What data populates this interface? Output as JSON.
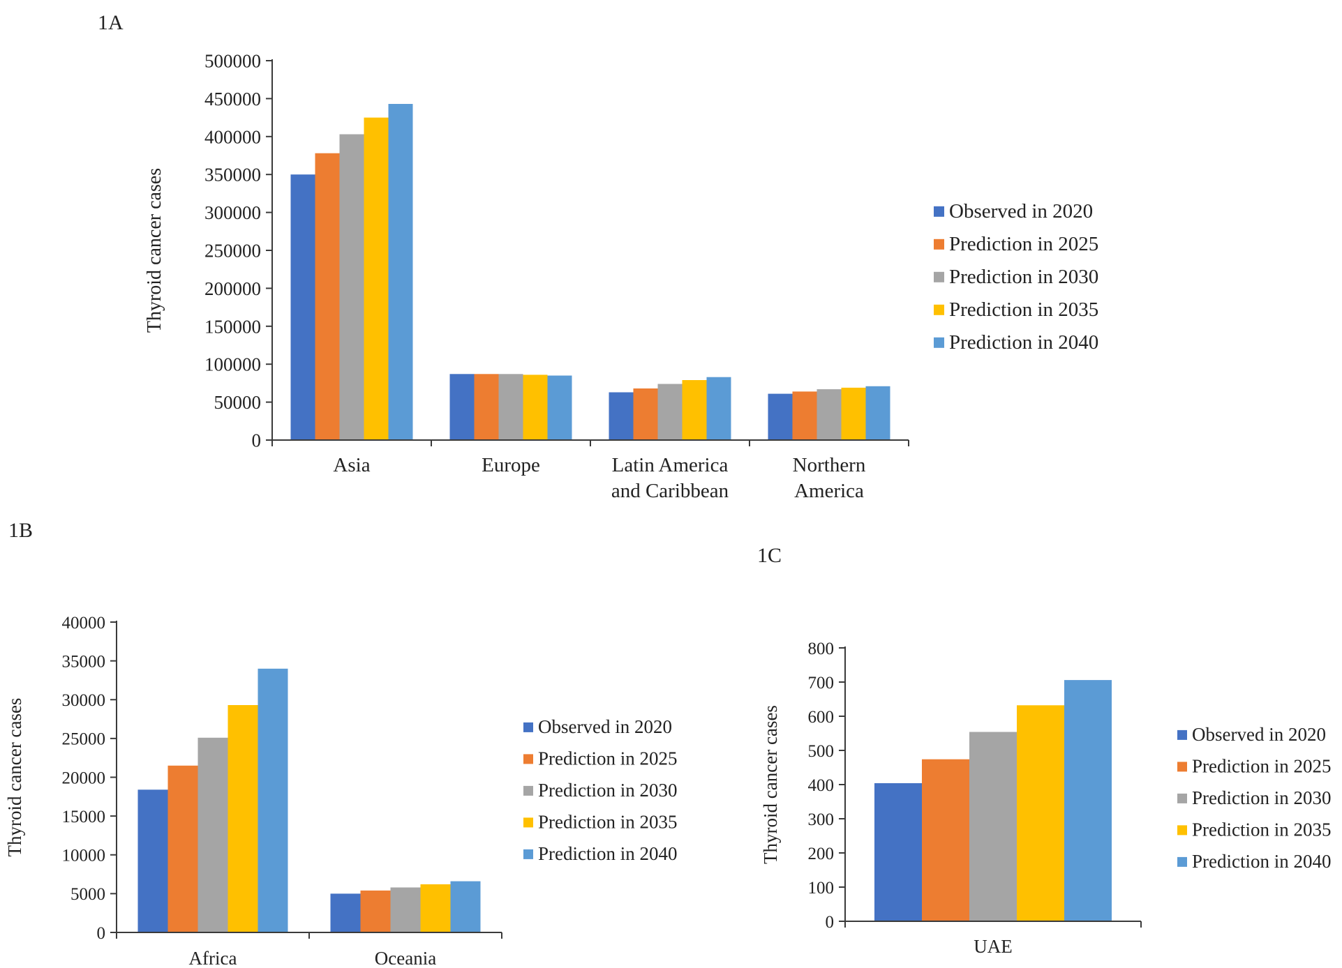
{
  "colors": {
    "observed_2020": "#4472c4",
    "prediction_2025": "#ed7d31",
    "prediction_2030": "#a5a5a5",
    "prediction_2035": "#ffc000",
    "prediction_2040": "#5b9bd5",
    "axis": "#3a3a3a"
  },
  "chart_data": [
    {
      "panel": "1A",
      "type": "bar",
      "categories": [
        [
          "Asia"
        ],
        [
          "Europe"
        ],
        [
          "Latin America",
          "and Caribbean"
        ],
        [
          "Northern",
          "America"
        ]
      ],
      "ylabel": "Thyroid cancer cases",
      "ylim": [
        0,
        500000
      ],
      "yticks": [
        0,
        50000,
        100000,
        150000,
        200000,
        250000,
        300000,
        350000,
        400000,
        450000,
        500000
      ],
      "grid": false,
      "legend": "right",
      "series": [
        {
          "name": "Observed in 2020",
          "values": [
            350000,
            87000,
            63000,
            61000
          ]
        },
        {
          "name": "Prediction in 2025",
          "values": [
            378000,
            87000,
            68000,
            64000
          ]
        },
        {
          "name": "Prediction in 2030",
          "values": [
            403000,
            87000,
            74000,
            67000
          ]
        },
        {
          "name": "Prediction in 2035",
          "values": [
            425000,
            86000,
            79000,
            69000
          ]
        },
        {
          "name": "Prediction in 2040",
          "values": [
            443000,
            85000,
            83000,
            71000
          ]
        }
      ]
    },
    {
      "panel": "1B",
      "type": "bar",
      "categories": [
        [
          "Africa"
        ],
        [
          "Oceania"
        ]
      ],
      "ylabel": "Thyroid cancer cases",
      "ylim": [
        0,
        40000
      ],
      "yticks": [
        0,
        5000,
        10000,
        15000,
        20000,
        25000,
        30000,
        35000,
        40000
      ],
      "grid": false,
      "legend": "right",
      "series": [
        {
          "name": "Observed in 2020",
          "values": [
            18400,
            5000
          ]
        },
        {
          "name": "Prediction in 2025",
          "values": [
            21500,
            5400
          ]
        },
        {
          "name": "Prediction in 2030",
          "values": [
            25100,
            5800
          ]
        },
        {
          "name": "Prediction in 2035",
          "values": [
            29300,
            6200
          ]
        },
        {
          "name": "Prediction in 2040",
          "values": [
            34000,
            6600
          ]
        }
      ]
    },
    {
      "panel": "1C",
      "type": "bar",
      "categories": [
        [
          "UAE"
        ]
      ],
      "ylabel": "Thyroid cancer cases",
      "ylim": [
        0,
        800
      ],
      "yticks": [
        0,
        100,
        200,
        300,
        400,
        500,
        600,
        700,
        800
      ],
      "grid": false,
      "legend": "right",
      "series": [
        {
          "name": "Observed in 2020",
          "values": [
            404
          ]
        },
        {
          "name": "Prediction in 2025",
          "values": [
            474
          ]
        },
        {
          "name": "Prediction in 2030",
          "values": [
            554
          ]
        },
        {
          "name": "Prediction in 2035",
          "values": [
            632
          ]
        },
        {
          "name": "Prediction in 2040",
          "values": [
            706
          ]
        }
      ]
    }
  ]
}
